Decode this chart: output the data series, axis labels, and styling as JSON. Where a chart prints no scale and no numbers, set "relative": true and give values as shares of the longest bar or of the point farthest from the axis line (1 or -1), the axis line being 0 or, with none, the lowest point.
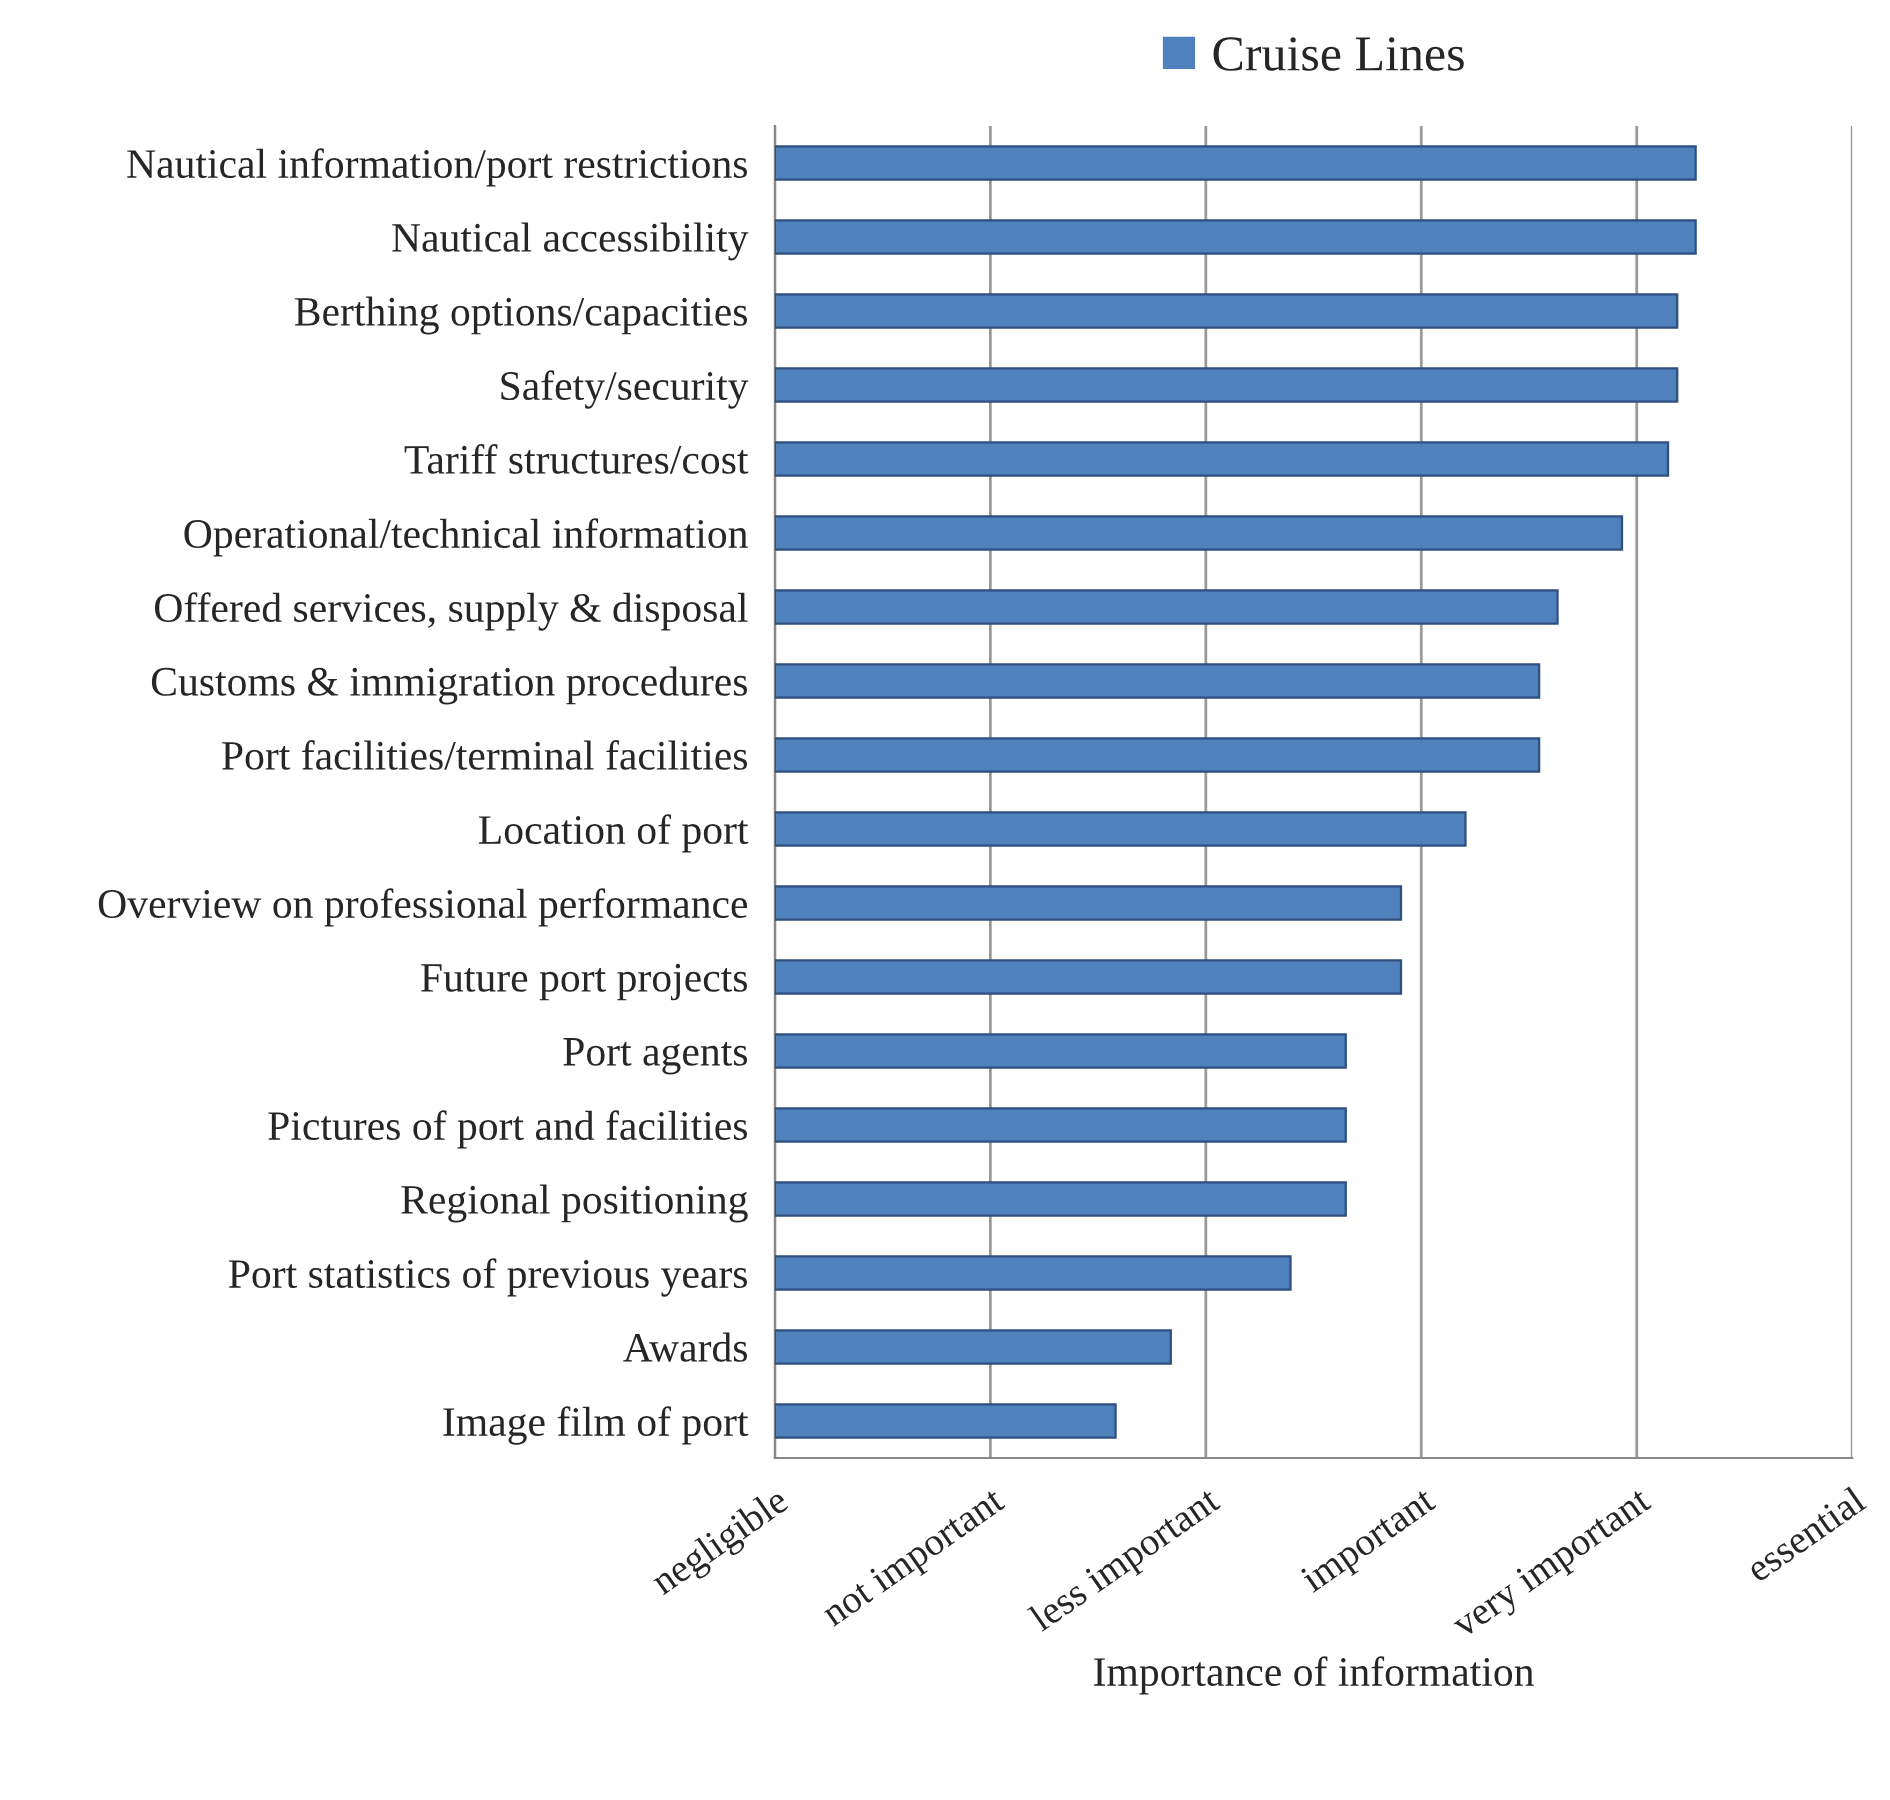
{
  "chart_data": {
    "type": "bar",
    "orientation": "horizontal",
    "relative": true,
    "categories": [
      "Nautical information/port restrictions",
      "Nautical accessibility",
      "Berthing options/capacities",
      "Safety/security",
      "Tariff structures/cost",
      "Operational/technical information",
      "Offered services, supply & disposal",
      "Customs & immigration procedures",
      "Port facilities/terminal facilities",
      "Location of port",
      "Overview on professional performance",
      "Future port projects",
      "Port agents",
      "Pictures of port and facilities",
      "Regional positioning",
      "Port statistics of previous years",
      "Awards",
      "Image film of port"
    ],
    "series": [
      {
        "name": "Cruise Lines",
        "color": "#4f81bd",
        "values": [
          1,
          1,
          0.98,
          0.98,
          0.97,
          0.92,
          0.85,
          0.83,
          0.83,
          0.75,
          0.68,
          0.68,
          0.62,
          0.62,
          0.62,
          0.56,
          0.43,
          0.37
        ]
      }
    ],
    "xlabel": "Importance of information",
    "annotations": [
      "negligible",
      "not important",
      "less important",
      "important",
      "very important",
      "essential"
    ],
    "grid": "x",
    "legend": "top"
  }
}
